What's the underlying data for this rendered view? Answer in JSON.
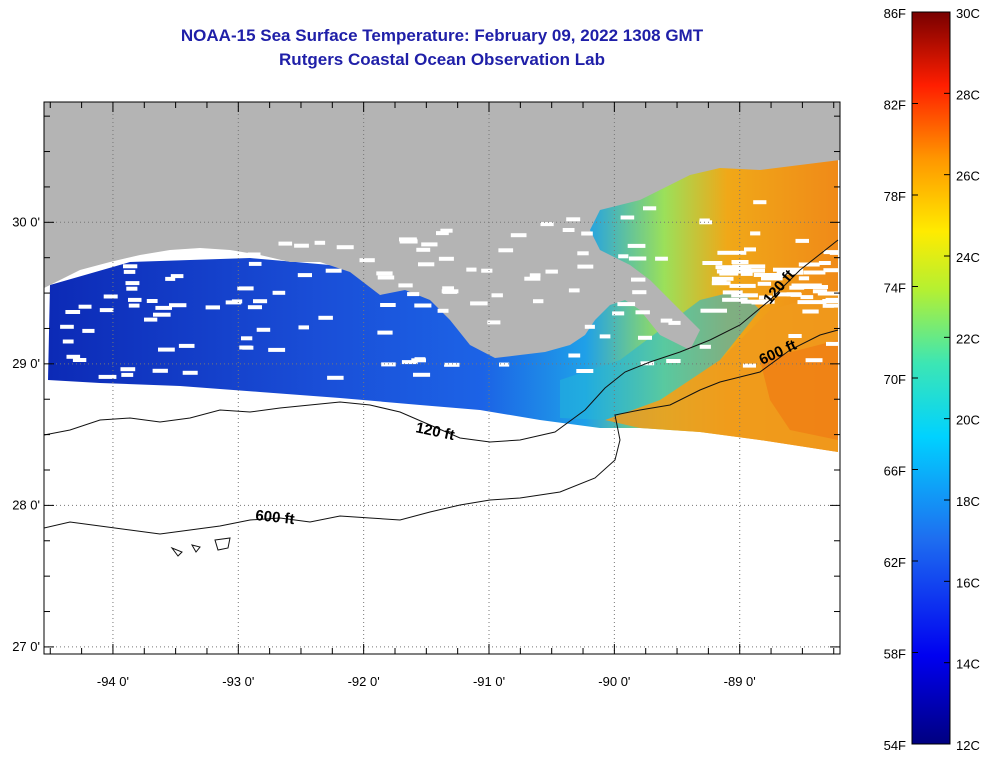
{
  "header": {
    "title": "NOAA-15 Sea Surface Temperature:  February 09, 2022 1308 GMT",
    "subtitle": "Rutgers Coastal Ocean Observation Lab"
  },
  "map": {
    "lon_ticks": [
      {
        "value": -94,
        "label": "-94 0'"
      },
      {
        "value": -93,
        "label": "-93 0'"
      },
      {
        "value": -92,
        "label": "-92 0'"
      },
      {
        "value": -91,
        "label": "-91 0'"
      },
      {
        "value": -90,
        "label": "-90 0'"
      },
      {
        "value": -89,
        "label": "-89 0'"
      }
    ],
    "lat_ticks": [
      {
        "value": 30,
        "label": "30 0'"
      },
      {
        "value": 29,
        "label": "29 0'"
      },
      {
        "value": 28,
        "label": "28 0'"
      },
      {
        "value": 27,
        "label": "27 0'"
      }
    ],
    "lon_range": [
      -94.55,
      -88.2
    ],
    "lat_range": [
      26.95,
      30.85
    ],
    "contours": [
      {
        "label": "120 ft"
      },
      {
        "label": "600 ft"
      },
      {
        "label": "120 ft"
      },
      {
        "label": "600 ft"
      }
    ],
    "colors": {
      "land": "#b4b4b4",
      "no_data": "#ffffff",
      "cold_water": "#0a2bb4",
      "warm_water": "#f0a018",
      "title": "#1f1fa8"
    }
  },
  "colorbar": {
    "fahrenheit_labels": [
      "86F",
      "82F",
      "78F",
      "74F",
      "70F",
      "66F",
      "62F",
      "58F",
      "54F"
    ],
    "celsius_labels": [
      "30C",
      "28C",
      "26C",
      "24C",
      "22C",
      "20C",
      "18C",
      "16C",
      "14C",
      "12C"
    ],
    "range_c": [
      12,
      30
    ]
  }
}
